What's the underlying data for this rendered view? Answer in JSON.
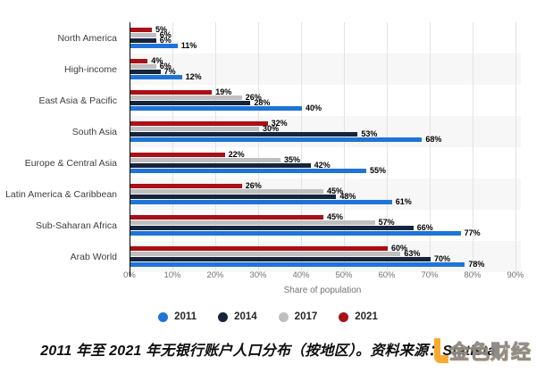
{
  "chart_data": {
    "type": "bar",
    "orientation": "horizontal",
    "title": "",
    "xlabel": "Share of population",
    "xlim": [
      0,
      90
    ],
    "x_ticks": [
      "0%",
      "10%",
      "20%",
      "30%",
      "40%",
      "50%",
      "60%",
      "70%",
      "80%",
      "90%"
    ],
    "grid": "vertical",
    "value_label_suffix": "%",
    "categories": [
      "North America",
      "High-income",
      "East Asia & Pacific",
      "South Asia",
      "Europe & Central Asia",
      "Latin America & Caribbean",
      "Sub-Saharan Africa",
      "Arab World"
    ],
    "series_top_to_bottom_per_group": [
      {
        "name": "2021",
        "color": "#aa1016",
        "values": [
          5,
          4,
          19,
          32,
          22,
          26,
          45,
          60
        ]
      },
      {
        "name": "2017",
        "color": "#bfbfbf",
        "values": [
          6,
          6,
          26,
          30,
          35,
          45,
          57,
          63
        ]
      },
      {
        "name": "2014",
        "color": "#16243c",
        "values": [
          6,
          7,
          28,
          53,
          42,
          48,
          66,
          70
        ]
      },
      {
        "name": "2011",
        "color": "#1f74d9",
        "values": [
          11,
          12,
          40,
          68,
          55,
          61,
          77,
          78
        ]
      }
    ]
  },
  "legend": {
    "items": [
      {
        "label": "2011",
        "color": "#1f74d9"
      },
      {
        "label": "2014",
        "color": "#16243c"
      },
      {
        "label": "2017",
        "color": "#bfbfbf"
      },
      {
        "label": "2021",
        "color": "#aa1016"
      }
    ]
  },
  "caption": {
    "text": "2011 年至 2021 年无银行账户人口分布（按地区）。资料来源：Statista"
  },
  "watermark": {
    "text": "金色财经",
    "accent_color": "#f8a41e"
  }
}
